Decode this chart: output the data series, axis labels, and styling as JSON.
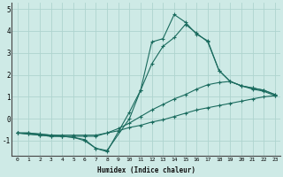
{
  "xlabel": "Humidex (Indice chaleur)",
  "background_color": "#ceeae6",
  "grid_color": "#aed4cf",
  "line_color": "#1a6b5e",
  "xlim": [
    -0.5,
    23.5
  ],
  "ylim": [
    -1.7,
    5.3
  ],
  "yticks": [
    -1,
    0,
    1,
    2,
    3,
    4,
    5
  ],
  "xticks": [
    0,
    1,
    2,
    3,
    4,
    5,
    6,
    7,
    8,
    9,
    10,
    11,
    12,
    13,
    14,
    15,
    16,
    17,
    18,
    19,
    20,
    21,
    22,
    23
  ],
  "series": [
    {
      "x": [
        0,
        1,
        2,
        3,
        4,
        5,
        6,
        7,
        8,
        9,
        10,
        11,
        12,
        13,
        14,
        15,
        16,
        17,
        18,
        19,
        20,
        21,
        22,
        23
      ],
      "y": [
        -0.65,
        -0.65,
        -0.7,
        -0.75,
        -0.75,
        -0.75,
        -0.75,
        -0.75,
        -0.65,
        -0.55,
        -0.4,
        -0.3,
        -0.15,
        -0.05,
        0.1,
        0.25,
        0.4,
        0.5,
        0.6,
        0.7,
        0.8,
        0.9,
        1.0,
        1.05
      ]
    },
    {
      "x": [
        0,
        1,
        2,
        3,
        4,
        5,
        6,
        7,
        8,
        9,
        10,
        11,
        12,
        13,
        14,
        15,
        16,
        17,
        18,
        19,
        20,
        21,
        22,
        23
      ],
      "y": [
        -0.65,
        -0.65,
        -0.7,
        -0.75,
        -0.8,
        -0.8,
        -0.8,
        -0.8,
        -0.65,
        -0.45,
        -0.2,
        0.1,
        0.4,
        0.65,
        0.9,
        1.1,
        1.35,
        1.55,
        1.65,
        1.7,
        1.5,
        1.4,
        1.3,
        1.1
      ]
    },
    {
      "x": [
        0,
        1,
        2,
        3,
        4,
        5,
        6,
        7,
        8,
        10,
        11,
        12,
        13,
        14,
        15,
        16,
        17,
        18,
        19,
        20,
        21,
        22,
        23
      ],
      "y": [
        -0.65,
        -0.7,
        -0.75,
        -0.8,
        -0.8,
        -0.85,
        -0.95,
        -1.35,
        -1.5,
        0.3,
        1.3,
        3.5,
        3.65,
        4.75,
        4.4,
        3.85,
        3.55,
        2.2,
        1.7,
        1.5,
        1.4,
        1.3,
        1.1
      ]
    },
    {
      "x": [
        0,
        1,
        2,
        3,
        4,
        5,
        6,
        7,
        8,
        10,
        11,
        12,
        13,
        14,
        15,
        16,
        17,
        18,
        19,
        20,
        21,
        22,
        23
      ],
      "y": [
        -0.65,
        -0.7,
        -0.75,
        -0.8,
        -0.8,
        -0.85,
        -1.0,
        -1.35,
        -1.45,
        0.0,
        1.3,
        2.5,
        3.3,
        3.7,
        4.3,
        3.9,
        3.5,
        2.2,
        1.7,
        1.5,
        1.35,
        1.25,
        1.05
      ]
    }
  ]
}
